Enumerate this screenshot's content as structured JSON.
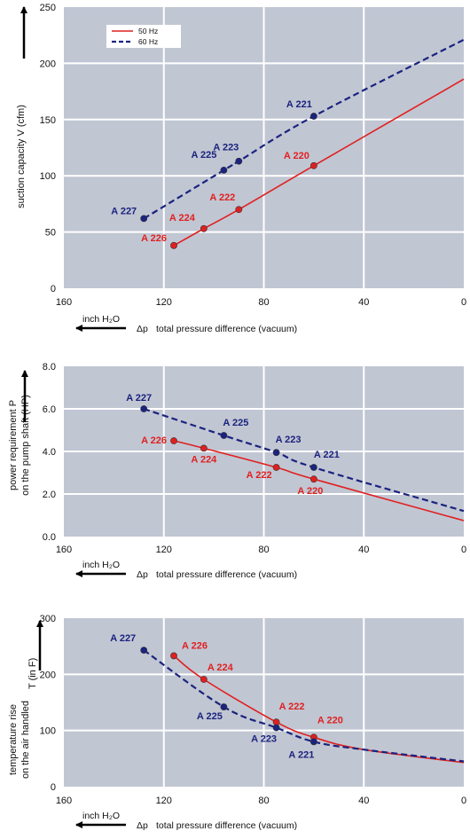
{
  "colors": {
    "50hz": "#e02020",
    "60hz": "#1a237e",
    "plot_bg": "#c1c6d3",
    "grid": "#ffffff"
  },
  "legend": {
    "s50": "50 Hz",
    "s60": "60 Hz",
    "placement": "top-left"
  },
  "chart_data": [
    {
      "type": "line",
      "ylabel": "suction capacity V (cfm)",
      "xlabel": "total pressure difference (vacuum)",
      "xlabel_symbol": "Δp",
      "unit_arrow_label": "inch H₂O",
      "xlim": [
        160,
        0
      ],
      "ylim": [
        0,
        250
      ],
      "xticks": [
        160,
        120,
        80,
        40,
        0
      ],
      "yticks": [
        "0",
        "50",
        "100",
        "150",
        "200",
        "250"
      ],
      "grid": true,
      "series": [
        {
          "name": "50 Hz",
          "style": "solid",
          "points": [
            [
              116,
              38
            ],
            [
              104,
              53
            ],
            [
              90,
              70
            ],
            [
              60,
              109
            ]
          ],
          "curve_extension": [
            [
              0,
              186
            ]
          ],
          "labels": [
            "A 226",
            "A 224",
            "A 222",
            "A 220"
          ]
        },
        {
          "name": "60 Hz",
          "style": "dashed",
          "points": [
            [
              128,
              62
            ],
            [
              96,
              105
            ],
            [
              90,
              113
            ],
            [
              60,
              153
            ]
          ],
          "curve_extension": [
            [
              0,
              221
            ]
          ],
          "labels": [
            "A 227",
            "A 225",
            "A 223",
            "A 221"
          ]
        }
      ]
    },
    {
      "type": "line",
      "ylabel": [
        "power requirement P",
        "on the pump shaft (HP)"
      ],
      "xlabel": "total pressure difference (vacuum)",
      "xlabel_symbol": "Δp",
      "unit_arrow_label": "inch H₂O",
      "xlim": [
        160,
        0
      ],
      "ylim": [
        0,
        8
      ],
      "xticks": [
        160,
        120,
        80,
        40,
        0
      ],
      "yticks": [
        "0.0",
        "2.0",
        "4.0",
        "6.0",
        "8.0"
      ],
      "grid": true,
      "series": [
        {
          "name": "50 Hz",
          "style": "solid",
          "points": [
            [
              116,
              4.5
            ],
            [
              104,
              4.15
            ],
            [
              75,
              3.25
            ],
            [
              60,
              2.7
            ]
          ],
          "curve_extension": [
            [
              0,
              0.75
            ]
          ],
          "labels": [
            "A 226",
            "A 224",
            "A 222",
            "A 220"
          ]
        },
        {
          "name": "60 Hz",
          "style": "dashed",
          "points": [
            [
              128,
              6.0
            ],
            [
              96,
              4.75
            ],
            [
              75,
              3.95
            ],
            [
              60,
              3.25
            ]
          ],
          "curve_extension": [
            [
              0,
              1.2
            ]
          ],
          "labels": [
            "A 227",
            "A 225",
            "A 223",
            "A 221"
          ]
        }
      ]
    },
    {
      "type": "line",
      "ylabel": [
        "temperature rise",
        "on the air handled"
      ],
      "ylabel_extra": "T   (in F)",
      "xlabel": "total pressure difference (vacuum)",
      "xlabel_symbol": "Δp",
      "unit_arrow_label": "inch H₂O",
      "xlim": [
        160,
        0
      ],
      "ylim": [
        0,
        300
      ],
      "xticks": [
        160,
        120,
        80,
        40,
        0
      ],
      "yticks": [
        "0",
        "100",
        "200",
        "300"
      ],
      "grid": true,
      "series": [
        {
          "name": "50 Hz",
          "style": "solid",
          "points": [
            [
              116,
              233
            ],
            [
              104,
              191
            ],
            [
              75,
              115
            ],
            [
              60,
              88
            ]
          ],
          "curve_extension": [
            [
              40,
              66
            ],
            [
              0,
              43
            ]
          ],
          "labels": [
            "A 226",
            "A 224",
            "A 222",
            "A 220"
          ]
        },
        {
          "name": "60 Hz",
          "style": "dashed",
          "points": [
            [
              128,
              243
            ],
            [
              96,
              142
            ],
            [
              75,
              105
            ],
            [
              60,
              80
            ]
          ],
          "curve_extension": [
            [
              40,
              66
            ],
            [
              0,
              45
            ]
          ],
          "labels": [
            "A 227",
            "A 225",
            "A 223",
            "A 221"
          ]
        }
      ]
    }
  ]
}
